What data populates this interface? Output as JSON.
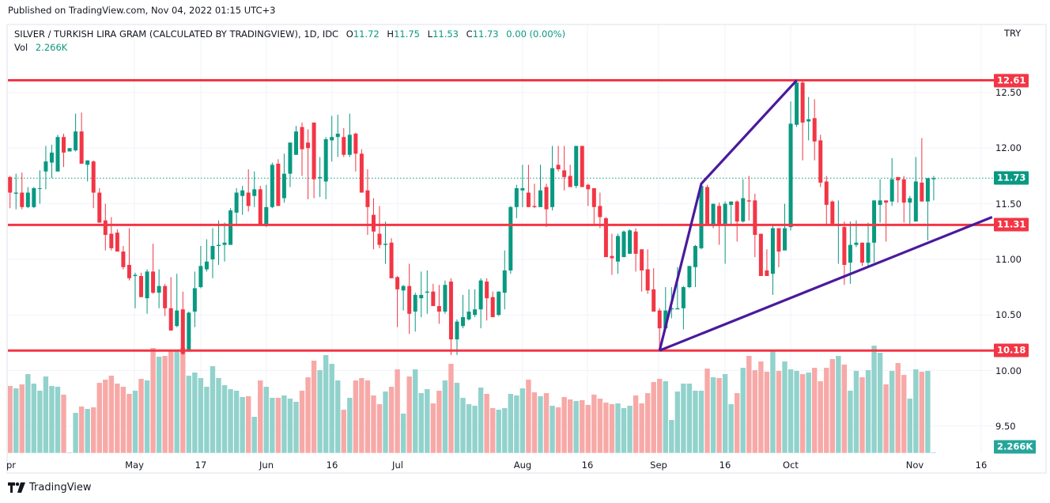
{
  "header": {
    "published": "Published on TradingView.com, Nov 04, 2022 01:15 UTC+3"
  },
  "legend": {
    "symbol": "SILVER / TURKISH LIRA GRAM (CALCULATED BY TRADINGVIEW), 1D, IDC",
    "o_label": "O",
    "o": "11.72",
    "h_label": "H",
    "h": "11.75",
    "l_label": "L",
    "l": "11.53",
    "c_label": "C",
    "c": "11.73",
    "change": "0.00 (0.00%)",
    "vol_label": "Vol",
    "vol": "2.266K"
  },
  "currency": "TRY",
  "footer": {
    "brand": "TradingView"
  },
  "colors": {
    "up": "#089981",
    "down": "#F23645",
    "vol_up": "#92D2CC",
    "vol_down": "#F7A9A7",
    "level": "#F23645",
    "drawing": "#4A1A9C",
    "grid": "#F0F3FA"
  },
  "chart_data": {
    "type": "candlestick",
    "title": "SILVER / TURKISH LIRA GRAM (CALCULATED BY TRADINGVIEW), 1D, IDC",
    "ylabel": "TRY",
    "ylim": [
      9.25,
      12.62
    ],
    "y_ticks": [
      "12.50",
      "12.00",
      "11.50",
      "11.00",
      "10.50",
      "10.00",
      "9.50"
    ],
    "x_ticks": [
      "pr",
      "May",
      "17",
      "Jun",
      "16",
      "Jul",
      "Aug",
      "16",
      "Sep",
      "16",
      "Oct",
      "Nov",
      "16"
    ],
    "ohlc": [
      [
        11.74,
        11.75,
        11.46,
        11.6
      ],
      [
        11.59,
        11.77,
        11.45,
        11.6
      ],
      [
        11.6,
        11.78,
        11.45,
        11.47
      ],
      [
        11.47,
        11.65,
        11.46,
        11.6
      ],
      [
        11.47,
        11.65,
        11.46,
        11.64
      ],
      [
        11.64,
        11.8,
        11.5,
        11.64
      ],
      [
        11.79,
        12.02,
        11.63,
        11.88
      ],
      [
        11.87,
        12.03,
        11.73,
        11.96
      ],
      [
        11.79,
        12.12,
        11.79,
        12.1
      ],
      [
        12.1,
        12.13,
        11.83,
        11.96
      ],
      [
        11.97,
        12.0,
        11.97,
        12.0
      ],
      [
        11.98,
        12.31,
        11.97,
        12.15
      ],
      [
        12.15,
        12.32,
        11.86,
        11.86
      ],
      [
        11.85,
        11.89,
        11.7,
        11.89
      ],
      [
        11.88,
        11.89,
        11.46,
        11.6
      ],
      [
        11.6,
        11.64,
        11.33,
        11.33
      ],
      [
        11.35,
        11.5,
        11.08,
        11.22
      ],
      [
        11.23,
        11.38,
        11.08,
        11.1
      ],
      [
        11.24,
        11.27,
        11.07,
        11.07
      ],
      [
        11.07,
        11.12,
        10.91,
        10.93
      ],
      [
        10.95,
        11.28,
        10.81,
        10.83
      ],
      [
        10.85,
        10.88,
        10.56,
        10.86
      ],
      [
        10.85,
        10.88,
        10.66,
        10.66
      ],
      [
        10.65,
        10.91,
        10.51,
        10.89
      ],
      [
        10.89,
        11.14,
        10.69,
        10.7
      ],
      [
        10.7,
        10.91,
        10.56,
        10.76
      ],
      [
        10.76,
        10.78,
        10.49,
        10.56
      ],
      [
        10.56,
        10.84,
        10.36,
        10.36
      ],
      [
        10.4,
        10.87,
        10.39,
        10.54
      ],
      [
        10.55,
        10.71,
        10.14,
        10.15
      ],
      [
        10.17,
        10.53,
        10.17,
        10.52
      ],
      [
        10.53,
        10.89,
        10.39,
        10.74
      ],
      [
        10.75,
        11.12,
        10.74,
        10.94
      ],
      [
        10.91,
        11.18,
        10.89,
        10.98
      ],
      [
        11.0,
        11.28,
        10.83,
        11.12
      ],
      [
        11.12,
        11.35,
        10.95,
        11.13
      ],
      [
        11.13,
        11.33,
        10.98,
        11.15
      ],
      [
        11.13,
        11.46,
        11.13,
        11.44
      ],
      [
        11.42,
        11.64,
        11.31,
        11.6
      ],
      [
        11.57,
        11.66,
        11.4,
        11.62
      ],
      [
        11.6,
        11.81,
        11.43,
        11.48
      ],
      [
        11.57,
        11.79,
        11.47,
        11.63
      ],
      [
        11.63,
        11.66,
        11.31,
        11.31
      ],
      [
        11.3,
        11.67,
        11.29,
        11.47
      ],
      [
        11.47,
        11.87,
        11.46,
        11.85
      ],
      [
        11.86,
        11.9,
        11.48,
        11.48
      ],
      [
        11.55,
        11.95,
        11.51,
        11.77
      ],
      [
        11.77,
        12.05,
        11.65,
        12.05
      ],
      [
        11.94,
        12.2,
        11.94,
        12.15
      ],
      [
        12.19,
        12.23,
        11.75,
        11.99
      ],
      [
        12.05,
        12.17,
        11.54,
        12.0
      ],
      [
        12.23,
        12.23,
        11.55,
        11.72
      ],
      [
        11.73,
        11.92,
        11.56,
        11.74
      ],
      [
        11.7,
        12.1,
        11.54,
        12.08
      ],
      [
        12.07,
        12.29,
        11.88,
        12.1
      ],
      [
        12.1,
        12.3,
        11.92,
        12.13
      ],
      [
        12.1,
        12.18,
        11.92,
        11.94
      ],
      [
        11.94,
        12.31,
        11.92,
        12.12
      ],
      [
        12.13,
        12.14,
        11.79,
        11.95
      ],
      [
        11.95,
        11.99,
        11.6,
        11.6
      ],
      [
        11.62,
        11.81,
        11.22,
        11.47
      ],
      [
        11.4,
        11.55,
        11.09,
        11.25
      ],
      [
        11.23,
        11.48,
        11.1,
        11.13
      ],
      [
        11.13,
        11.34,
        10.96,
        11.14
      ],
      [
        11.15,
        11.19,
        10.83,
        10.83
      ],
      [
        10.84,
        10.85,
        10.39,
        10.73
      ],
      [
        10.72,
        10.77,
        10.54,
        10.76
      ],
      [
        10.76,
        10.96,
        10.33,
        10.51
      ],
      [
        10.53,
        10.7,
        10.35,
        10.68
      ],
      [
        10.65,
        10.89,
        10.48,
        10.68
      ],
      [
        10.7,
        10.9,
        10.51,
        10.71
      ],
      [
        10.71,
        10.78,
        10.58,
        10.58
      ],
      [
        10.58,
        10.77,
        10.42,
        10.53
      ],
      [
        10.53,
        10.81,
        10.51,
        10.77
      ],
      [
        10.8,
        10.83,
        10.14,
        10.28
      ],
      [
        10.28,
        10.46,
        10.14,
        10.44
      ],
      [
        10.4,
        10.68,
        10.38,
        10.48
      ],
      [
        10.46,
        10.73,
        10.45,
        10.53
      ],
      [
        10.5,
        10.73,
        10.48,
        10.55
      ],
      [
        10.55,
        10.83,
        10.38,
        10.81
      ],
      [
        10.8,
        10.83,
        10.45,
        10.65
      ],
      [
        10.66,
        10.71,
        10.48,
        10.48
      ],
      [
        10.5,
        10.71,
        10.49,
        10.71
      ],
      [
        10.7,
        11.08,
        10.55,
        10.9
      ],
      [
        10.9,
        11.48,
        10.87,
        11.47
      ],
      [
        11.47,
        11.67,
        11.37,
        11.64
      ],
      [
        11.62,
        11.85,
        11.47,
        11.64
      ],
      [
        11.6,
        11.85,
        11.47,
        11.47
      ],
      [
        11.48,
        11.68,
        11.46,
        11.47
      ],
      [
        11.47,
        11.85,
        11.47,
        11.62
      ],
      [
        11.65,
        11.68,
        11.29,
        11.45
      ],
      [
        11.47,
        12.02,
        11.44,
        11.82
      ],
      [
        11.85,
        12.02,
        11.79,
        11.81
      ],
      [
        11.8,
        12.02,
        11.62,
        11.74
      ],
      [
        11.75,
        11.85,
        11.65,
        11.65
      ],
      [
        11.66,
        12.02,
        11.64,
        12.02
      ],
      [
        12.02,
        12.02,
        11.65,
        11.65
      ],
      [
        11.67,
        11.68,
        11.48,
        11.63
      ],
      [
        11.64,
        11.64,
        11.32,
        11.47
      ],
      [
        11.48,
        11.6,
        11.28,
        11.38
      ],
      [
        11.37,
        11.38,
        11.02,
        11.02
      ],
      [
        11.03,
        11.23,
        10.86,
        11.01
      ],
      [
        10.98,
        11.23,
        10.87,
        11.21
      ],
      [
        11.02,
        11.26,
        11.02,
        11.25
      ],
      [
        11.05,
        11.27,
        11.05,
        11.26
      ],
      [
        11.25,
        11.28,
        10.89,
        11.05
      ],
      [
        11.09,
        11.09,
        10.71,
        10.9
      ],
      [
        10.91,
        11.09,
        10.69,
        10.72
      ],
      [
        10.73,
        10.92,
        10.53,
        10.53
      ],
      [
        10.54,
        10.56,
        10.18,
        10.38
      ],
      [
        10.38,
        10.75,
        10.38,
        10.54
      ],
      [
        10.55,
        10.75,
        10.47,
        10.56
      ],
      [
        10.55,
        10.93,
        10.55,
        10.56
      ],
      [
        10.56,
        10.76,
        10.37,
        10.75
      ],
      [
        10.75,
        10.94,
        10.74,
        10.94
      ],
      [
        10.93,
        11.13,
        10.75,
        11.12
      ],
      [
        11.1,
        11.68,
        11.09,
        11.66
      ],
      [
        11.65,
        11.67,
        11.32,
        11.32
      ],
      [
        11.3,
        11.5,
        11.28,
        11.5
      ],
      [
        11.48,
        11.51,
        11.13,
        11.32
      ],
      [
        11.32,
        11.52,
        10.96,
        11.5
      ],
      [
        11.49,
        11.52,
        11.31,
        11.52
      ],
      [
        11.52,
        11.53,
        11.16,
        11.34
      ],
      [
        11.34,
        11.72,
        11.33,
        11.55
      ],
      [
        11.53,
        11.75,
        11.35,
        11.52
      ],
      [
        11.53,
        11.59,
        11.02,
        11.22
      ],
      [
        11.23,
        11.23,
        10.85,
        10.85
      ],
      [
        10.9,
        11.09,
        10.85,
        10.85
      ],
      [
        10.87,
        11.31,
        10.68,
        11.28
      ],
      [
        11.28,
        11.28,
        10.93,
        11.07
      ],
      [
        11.08,
        11.5,
        11.08,
        11.28
      ],
      [
        11.29,
        12.42,
        11.26,
        12.22
      ],
      [
        12.21,
        12.61,
        12.19,
        12.59
      ],
      [
        12.59,
        12.6,
        11.89,
        12.23
      ],
      [
        12.24,
        12.46,
        12.07,
        12.26
      ],
      [
        12.27,
        12.44,
        11.89,
        12.06
      ],
      [
        12.07,
        12.12,
        11.65,
        11.69
      ],
      [
        11.7,
        11.75,
        11.32,
        11.49
      ],
      [
        11.52,
        11.53,
        11.32,
        11.32
      ],
      [
        11.3,
        11.53,
        10.96,
        11.31
      ],
      [
        11.29,
        11.34,
        10.77,
        10.95
      ],
      [
        10.97,
        11.34,
        10.78,
        11.13
      ],
      [
        11.13,
        11.35,
        11.11,
        11.15
      ],
      [
        11.15,
        11.15,
        10.94,
        10.97
      ],
      [
        10.97,
        11.33,
        10.94,
        11.15
      ],
      [
        11.15,
        11.53,
        10.97,
        11.53
      ],
      [
        11.49,
        11.72,
        11.33,
        11.53
      ],
      [
        11.53,
        11.53,
        11.16,
        11.51
      ],
      [
        11.52,
        11.91,
        11.48,
        11.72
      ],
      [
        11.74,
        11.74,
        11.51,
        11.71
      ],
      [
        11.72,
        11.75,
        11.33,
        11.51
      ],
      [
        11.51,
        11.57,
        11.32,
        11.55
      ],
      [
        11.34,
        11.92,
        11.34,
        11.7
      ],
      [
        11.69,
        12.09,
        11.52,
        11.52
      ],
      [
        11.52,
        11.73,
        11.17,
        11.73
      ],
      [
        11.72,
        11.75,
        11.53,
        11.73
      ]
    ],
    "volume_relative": [
      254,
      245,
      260,
      299,
      263,
      236,
      290,
      254,
      251,
      221,
      2,
      152,
      176,
      167,
      173,
      266,
      278,
      293,
      263,
      251,
      224,
      236,
      281,
      275,
      398,
      365,
      368,
      389,
      386,
      398,
      293,
      305,
      284,
      251,
      329,
      284,
      257,
      242,
      236,
      212,
      215,
      137,
      275,
      251,
      209,
      209,
      218,
      206,
      194,
      236,
      287,
      350,
      314,
      371,
      338,
      275,
      164,
      209,
      275,
      284,
      275,
      218,
      185,
      233,
      251,
      317,
      149,
      290,
      317,
      227,
      242,
      188,
      236,
      275,
      338,
      266,
      209,
      185,
      179,
      248,
      224,
      170,
      164,
      170,
      224,
      218,
      245,
      278,
      230,
      215,
      227,
      179,
      173,
      212,
      203,
      197,
      200,
      182,
      221,
      206,
      191,
      185,
      188,
      170,
      179,
      218,
      188,
      227,
      269,
      281,
      272,
      125,
      233,
      263,
      263,
      236,
      236,
      320,
      287,
      284,
      299,
      185,
      227,
      323,
      368,
      314,
      347,
      308,
      386,
      311,
      347,
      317,
      311,
      299,
      305,
      323,
      272,
      323,
      356,
      368,
      335,
      236,
      311,
      287,
      314,
      407,
      380,
      260,
      311,
      341,
      296,
      206,
      317,
      308,
      311,
      2
    ],
    "last_price": "11.73",
    "last_volume": "2.266K",
    "horizontal_levels": [
      "12.61",
      "11.31",
      "10.18"
    ],
    "drawings": {
      "impulse_polyline": [
        [
          109,
          10.18
        ],
        [
          116,
          11.68
        ],
        [
          132,
          12.61
        ]
      ],
      "support_trendline": [
        [
          109,
          10.18
        ],
        [
          164.8,
          11.38
        ]
      ]
    }
  }
}
